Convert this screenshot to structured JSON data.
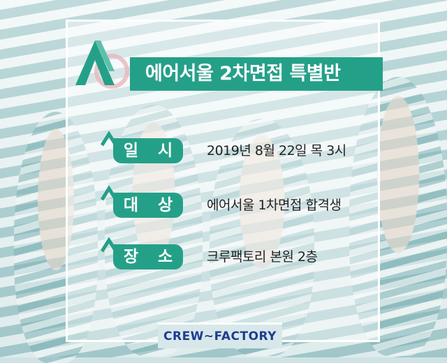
{
  "title": "에어서울 2차면접 특별반",
  "rows": [
    {
      "label": "일 시",
      "value": "2019년 8월 22일 목 3시"
    },
    {
      "label": "대 상",
      "value": "에어서울 1차면접 합격생"
    },
    {
      "label": "장 소",
      "value": "크루팩토리 본원 2층"
    }
  ],
  "footer": "CREW~FACTORY",
  "colors": {
    "accent": "#25a088",
    "brand_text": "#1f3d8f"
  }
}
